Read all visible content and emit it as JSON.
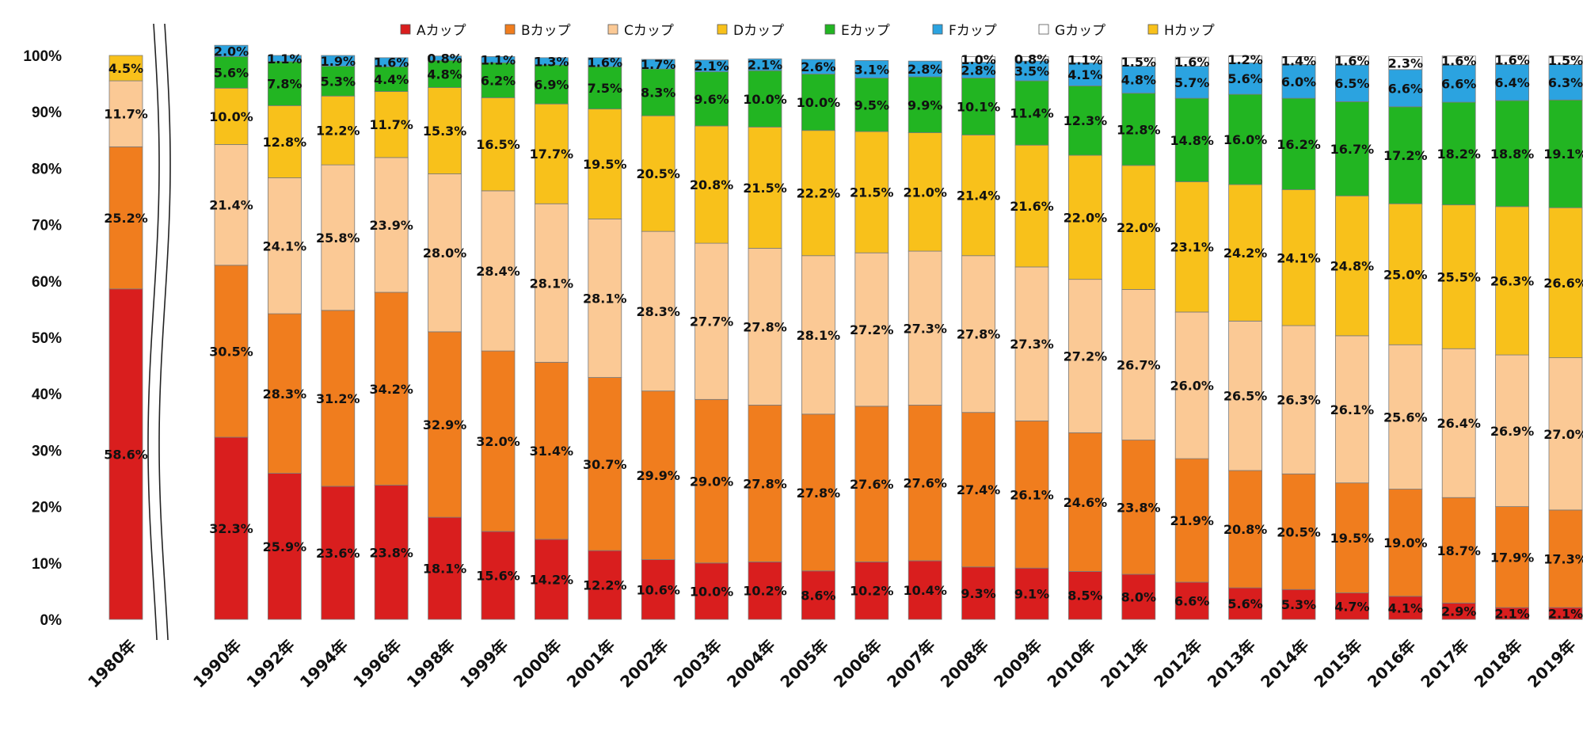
{
  "chart_data": {
    "type": "bar",
    "stacked": true,
    "title": "",
    "xlabel": "",
    "ylabel": "",
    "ylim": [
      0,
      100
    ],
    "y_tick_labels": [
      "0%",
      "10%",
      "20%",
      "30%",
      "40%",
      "50%",
      "60%",
      "70%",
      "80%",
      "90%",
      "100%"
    ],
    "axis_break_between": [
      "1980年",
      "1990年"
    ],
    "legend_position": "top",
    "categories": [
      "1980年",
      "1990年",
      "1992年",
      "1994年",
      "1996年",
      "1998年",
      "1999年",
      "2000年",
      "2001年",
      "2002年",
      "2003年",
      "2004年",
      "2005年",
      "2006年",
      "2007年",
      "2008年",
      "2009年",
      "2010年",
      "2011年",
      "2012年",
      "2013年",
      "2014年",
      "2015年",
      "2016年",
      "2017年",
      "2018年",
      "2019年"
    ],
    "series": [
      {
        "name": "Aカップ",
        "color": "#d91e1e",
        "values": [
          58.6,
          32.3,
          25.9,
          23.6,
          23.8,
          18.1,
          15.6,
          14.2,
          12.2,
          10.6,
          10.0,
          10.2,
          8.6,
          10.2,
          10.4,
          9.3,
          9.1,
          8.5,
          8.0,
          6.6,
          5.6,
          5.3,
          4.7,
          4.1,
          2.9,
          2.1,
          2.1
        ]
      },
      {
        "name": "Bカップ",
        "color": "#f07d1e",
        "values": [
          25.2,
          30.5,
          28.3,
          31.2,
          34.2,
          32.9,
          32.0,
          31.4,
          30.7,
          29.9,
          29.0,
          27.8,
          27.8,
          27.6,
          27.6,
          27.4,
          26.1,
          24.6,
          23.8,
          21.9,
          20.8,
          20.5,
          19.5,
          19.0,
          18.7,
          17.9,
          17.3
        ]
      },
      {
        "name": "Cカップ",
        "color": "#fbc995",
        "values": [
          11.7,
          21.4,
          24.1,
          25.8,
          23.9,
          28.0,
          28.4,
          28.1,
          28.1,
          28.3,
          27.7,
          27.8,
          28.1,
          27.2,
          27.3,
          27.8,
          27.3,
          27.2,
          26.7,
          26.0,
          26.5,
          26.3,
          26.1,
          25.6,
          26.4,
          26.9,
          27.0
        ]
      },
      {
        "name": "Dカップ",
        "color": "#f8c11b",
        "values": [
          4.5,
          10.0,
          12.8,
          12.2,
          11.7,
          15.3,
          16.5,
          17.7,
          19.5,
          20.5,
          20.8,
          21.5,
          22.2,
          21.5,
          21.0,
          21.4,
          21.6,
          22.0,
          22.0,
          23.1,
          24.2,
          24.1,
          24.8,
          25.0,
          25.5,
          26.3,
          26.6
        ]
      },
      {
        "name": "Eカップ",
        "color": "#22b522",
        "values": [
          0,
          5.6,
          7.8,
          5.3,
          4.4,
          4.8,
          6.2,
          6.9,
          7.5,
          8.3,
          9.6,
          10.0,
          10.0,
          9.5,
          9.9,
          10.1,
          11.4,
          12.3,
          12.8,
          14.8,
          16.0,
          16.2,
          16.7,
          17.2,
          18.2,
          18.8,
          19.1
        ]
      },
      {
        "name": "Fカップ",
        "color": "#2ba3e0",
        "values": [
          0,
          2.0,
          1.1,
          1.9,
          1.6,
          0.8,
          1.1,
          1.3,
          1.6,
          1.7,
          2.1,
          2.1,
          2.6,
          3.1,
          2.8,
          2.8,
          3.5,
          4.1,
          4.8,
          5.7,
          5.6,
          6.0,
          6.5,
          6.6,
          6.6,
          6.4,
          6.3
        ]
      },
      {
        "name": "Gカップ",
        "color": "#ffffff",
        "values": [
          0,
          0,
          0,
          0,
          0,
          0,
          0,
          0,
          0,
          0,
          0,
          0,
          0,
          0,
          0,
          1.0,
          0.8,
          1.1,
          1.5,
          1.6,
          1.2,
          1.4,
          1.6,
          2.3,
          1.6,
          1.6,
          1.5
        ]
      },
      {
        "name": "Hカップ",
        "color": "#f8c11b",
        "values": [
          0,
          0,
          0,
          0,
          0,
          0,
          0,
          0,
          0,
          0,
          0,
          0,
          0,
          0,
          0,
          0,
          0,
          0,
          0,
          0,
          0,
          0,
          0,
          0,
          0,
          0,
          0
        ]
      }
    ]
  }
}
